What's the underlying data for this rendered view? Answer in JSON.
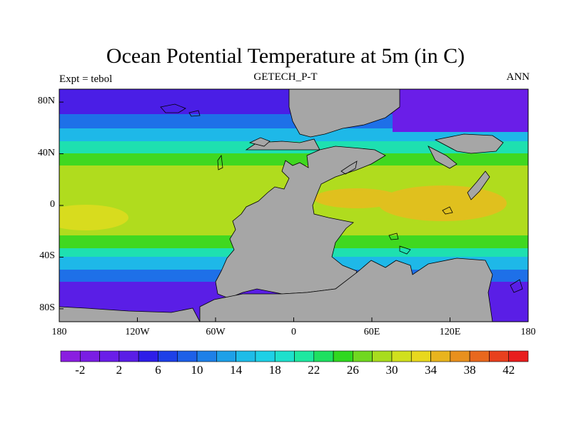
{
  "title": "Ocean Potential Temperature at 5m (in C)",
  "left_label": "Expt = tebol",
  "center_label": "GETECH_P-T",
  "right_label": "ANN",
  "map": {
    "lon_range": [
      -180,
      180
    ],
    "lat_range": [
      -90,
      90
    ],
    "y_ticks": [
      {
        "lat": 80,
        "label": "80N"
      },
      {
        "lat": 40,
        "label": "40N"
      },
      {
        "lat": 0,
        "label": "0"
      },
      {
        "lat": -40,
        "label": "40S"
      },
      {
        "lat": -80,
        "label": "80S"
      }
    ],
    "x_ticks": [
      {
        "lon": -180,
        "label": "180"
      },
      {
        "lon": -120,
        "label": "120W"
      },
      {
        "lon": -60,
        "label": "60W"
      },
      {
        "lon": 0,
        "label": "0"
      },
      {
        "lon": 60,
        "label": "60E"
      },
      {
        "lon": 120,
        "label": "120E"
      },
      {
        "lon": 180,
        "label": "180"
      }
    ],
    "land_color": "#a6a6a6"
  },
  "colorbar": {
    "min": -4,
    "max": 44,
    "step": 2,
    "colors": [
      "#8a1ee0",
      "#7a1ee3",
      "#6a1ee8",
      "#5a1ee6",
      "#2e1ee8",
      "#1e40e8",
      "#1e60e8",
      "#1e80e8",
      "#1ea0e8",
      "#1ebce8",
      "#1ed0e6",
      "#1ee0cc",
      "#1ee8a0",
      "#1ee060",
      "#30d820",
      "#70d820",
      "#a8dc1e",
      "#d0e01e",
      "#e8d81e",
      "#e8b41e",
      "#e8901e",
      "#e8681e",
      "#e8401e",
      "#e81e1e"
    ],
    "labels": [
      "-2",
      "2",
      "6",
      "10",
      "14",
      "18",
      "22",
      "26",
      "30",
      "34",
      "38",
      "42"
    ]
  }
}
